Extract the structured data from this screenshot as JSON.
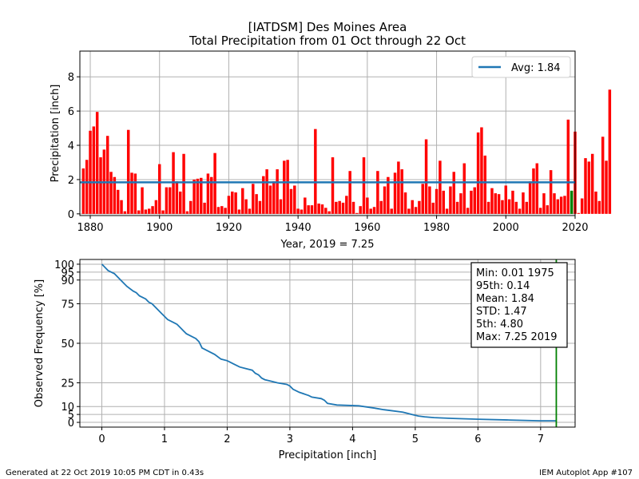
{
  "header": {
    "title_line1": "[IATDSM] Des Moines Area",
    "title_line2": "Total Precipitation from 01 Oct through 22 Oct"
  },
  "footer": {
    "generated": "Generated at 22 Oct 2019 10:05 PM CDT in 0.43s",
    "app": "IEM Autoplot App #107"
  },
  "colors": {
    "bar": "#ff0000",
    "current_bar": "#008000",
    "avg_line": "#1f77b4",
    "curve": "#1f77b4",
    "max_line": "#008000",
    "grid": "#b0b0b0"
  },
  "chart_data": [
    {
      "type": "bar",
      "xlabel": "Year, 2019 = 7.25",
      "ylabel": "Precipitation [inch]",
      "xlim": [
        1877,
        2020
      ],
      "ylim": [
        -0.1,
        9.5
      ],
      "xticks": [
        1880,
        1900,
        1920,
        1940,
        1960,
        1980,
        2000,
        2020
      ],
      "yticks": [
        0,
        2,
        4,
        6,
        8
      ],
      "grid": true,
      "legend": {
        "placement": "top-right",
        "label": "Avg: 1.84"
      },
      "average": 1.84,
      "current_year": 2019,
      "current_value": 7.25,
      "start_year": 1878,
      "values": [
        2.65,
        3.15,
        4.85,
        5.1,
        5.95,
        3.3,
        3.75,
        4.55,
        2.45,
        2.15,
        1.4,
        0.8,
        0.15,
        4.9,
        2.4,
        2.35,
        0.2,
        1.55,
        0.25,
        0.3,
        0.45,
        0.8,
        2.9,
        0.2,
        1.55,
        1.55,
        3.6,
        1.9,
        1.3,
        3.5,
        0.15,
        0.75,
        2.0,
        2.05,
        2.1,
        0.65,
        2.35,
        2.15,
        3.55,
        0.4,
        0.45,
        0.35,
        1.05,
        1.3,
        1.25,
        0.25,
        1.5,
        0.85,
        0.3,
        1.75,
        1.15,
        0.75,
        2.2,
        2.6,
        1.65,
        1.9,
        2.6,
        0.85,
        3.1,
        3.15,
        1.45,
        1.65,
        0.3,
        0.25,
        0.95,
        0.5,
        0.5,
        4.95,
        0.6,
        0.55,
        0.35,
        0.15,
        3.3,
        0.7,
        0.75,
        0.65,
        1.05,
        2.5,
        0.7,
        0.05,
        0.45,
        3.3,
        0.95,
        0.3,
        0.4,
        2.5,
        0.75,
        1.6,
        2.15,
        0.3,
        2.4,
        3.05,
        2.6,
        1.25,
        0.3,
        0.8,
        0.4,
        0.75,
        1.75,
        4.35,
        1.6,
        0.65,
        1.45,
        3.1,
        1.35,
        0.3,
        1.6,
        2.45,
        0.7,
        1.2,
        2.95,
        0.35,
        1.35,
        1.55,
        4.75,
        5.05,
        3.4,
        0.7,
        1.5,
        1.2,
        1.15,
        0.8,
        1.65,
        0.85,
        1.35,
        0.7,
        0.3,
        1.25,
        0.7,
        1.9,
        2.65,
        2.95,
        0.35,
        1.2,
        0.5,
        2.55,
        1.2,
        0.85,
        1.0,
        1.05,
        5.5,
        1.35,
        4.8,
        0.05,
        0.9,
        3.25,
        3.05,
        3.5,
        1.3,
        0.75,
        4.5,
        3.1,
        7.25
      ]
    },
    {
      "type": "line",
      "xlabel": "Precipitation [inch]",
      "ylabel": "Observed Frequency [%]",
      "xlim": [
        -0.35,
        7.55
      ],
      "ylim": [
        -3,
        103
      ],
      "xticks": [
        0,
        1,
        2,
        3,
        4,
        5,
        6,
        7
      ],
      "yticks": [
        0,
        5,
        10,
        25,
        50,
        75,
        90,
        95,
        100
      ],
      "grid": true,
      "max_marker": 7.25,
      "stats": [
        "Min: 0.01 1975",
        "95th: 0.14",
        "Mean: 1.84",
        "STD: 1.47",
        "5th: 4.80",
        "Max: 7.25 2019"
      ],
      "x": [
        0.0,
        0.05,
        0.1,
        0.2,
        0.25,
        0.3,
        0.4,
        0.5,
        0.55,
        0.6,
        0.7,
        0.75,
        0.8,
        0.9,
        0.95,
        1.0,
        1.05,
        1.15,
        1.2,
        1.25,
        1.3,
        1.35,
        1.4,
        1.5,
        1.55,
        1.6,
        1.65,
        1.7,
        1.8,
        1.9,
        2.0,
        2.05,
        2.1,
        2.2,
        2.3,
        2.4,
        2.45,
        2.5,
        2.55,
        2.6,
        2.7,
        2.8,
        2.95,
        3.0,
        3.05,
        3.15,
        3.3,
        3.35,
        3.5,
        3.55,
        3.6,
        3.75,
        4.1,
        4.35,
        4.5,
        4.6,
        4.8,
        4.95,
        5.05,
        5.15,
        5.3,
        5.6,
        6.0,
        6.5,
        7.0,
        7.25
      ],
      "y": [
        100,
        98,
        96,
        94,
        92,
        90,
        86,
        83,
        82,
        80,
        78,
        76,
        75,
        71,
        69,
        67,
        65,
        63,
        62,
        60,
        58,
        56,
        55,
        53,
        51,
        47,
        46,
        45,
        43,
        40,
        39,
        38,
        37,
        35,
        34,
        33,
        31,
        30,
        28,
        27,
        26,
        25,
        24,
        23,
        21,
        19,
        17,
        16,
        15,
        14,
        12,
        11,
        10.5,
        9,
        8,
        7.5,
        6.5,
        5,
        4,
        3.5,
        3,
        2.5,
        2,
        1.5,
        1,
        1
      ]
    }
  ]
}
